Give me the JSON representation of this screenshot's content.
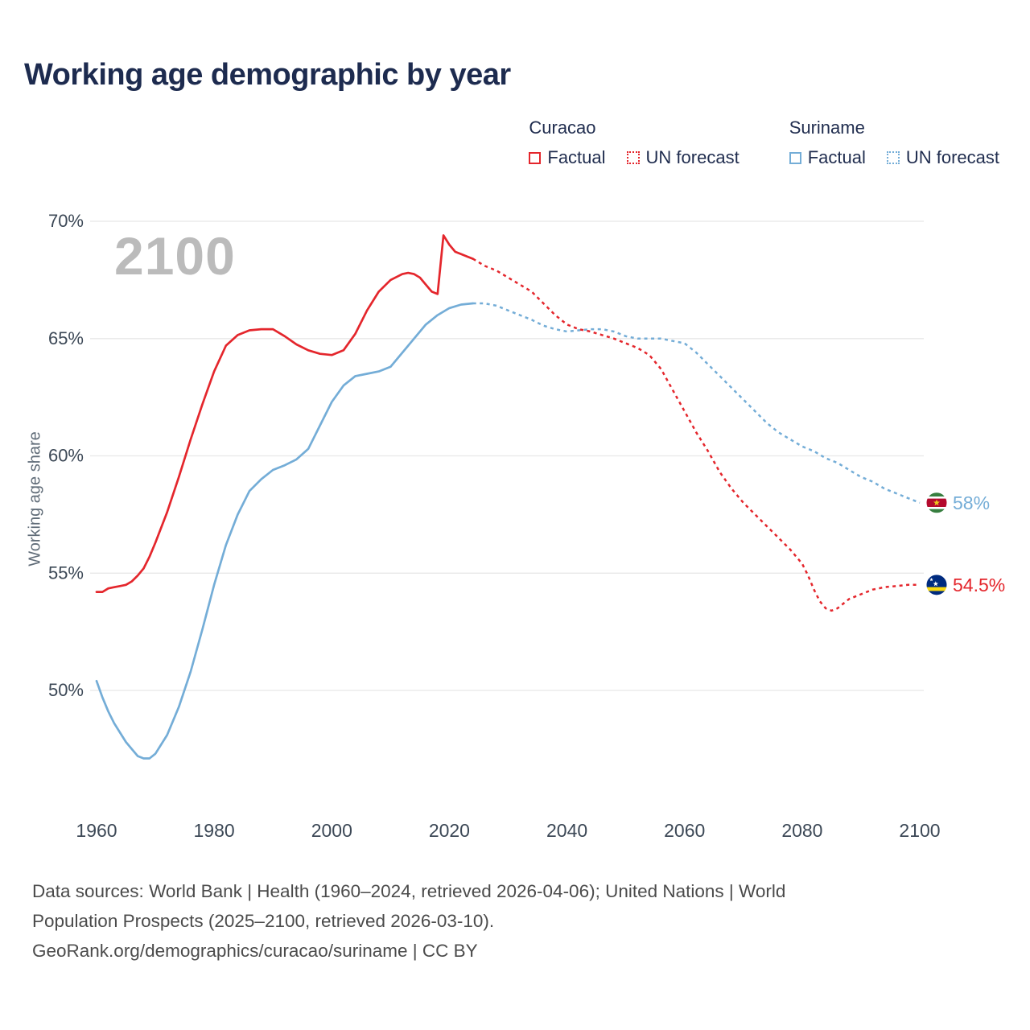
{
  "title": "Working age demographic by year",
  "legend": {
    "groups": [
      {
        "name": "Curacao",
        "items": [
          {
            "label": "Factual",
            "style": "solid"
          },
          {
            "label": "UN forecast",
            "style": "dotted"
          }
        ]
      },
      {
        "name": "Suriname",
        "items": [
          {
            "label": "Factual",
            "style": "solid"
          },
          {
            "label": "UN forecast",
            "style": "dotted"
          }
        ]
      }
    ]
  },
  "chart_data": {
    "type": "line",
    "title": "Working age demographic by year",
    "ylabel": "Working age share",
    "watermark": "2100",
    "xlim": [
      1960,
      2100
    ],
    "ylim": [
      44.5,
      71
    ],
    "yticks": [
      50,
      55,
      60,
      65,
      70
    ],
    "ytick_suffix": "%",
    "xticks": [
      1960,
      1980,
      2000,
      2020,
      2040,
      2060,
      2080,
      2100
    ],
    "grid": "horizontal",
    "legend_position": "top-right",
    "series": [
      {
        "name": "Curacao",
        "color": "#e4262c",
        "flag": "curacao-flag",
        "end_value_label": "54.5%",
        "factual": {
          "years": [
            1960,
            1961,
            1962,
            1963,
            1964,
            1965,
            1966,
            1967,
            1968,
            1969,
            1970,
            1972,
            1974,
            1976,
            1978,
            1980,
            1982,
            1984,
            1986,
            1988,
            1990,
            1992,
            1994,
            1996,
            1998,
            2000,
            2002,
            2004,
            2006,
            2008,
            2010,
            2012,
            2013,
            2014,
            2015,
            2016,
            2017,
            2018,
            2019,
            2020,
            2021,
            2022,
            2023,
            2024
          ],
          "values": [
            54.2,
            54.2,
            54.35,
            54.4,
            54.45,
            54.5,
            54.65,
            54.9,
            55.2,
            55.7,
            56.3,
            57.6,
            59.1,
            60.7,
            62.2,
            63.6,
            64.7,
            65.15,
            65.35,
            65.4,
            65.4,
            65.1,
            64.75,
            64.5,
            64.35,
            64.3,
            64.5,
            65.2,
            66.2,
            67.0,
            67.5,
            67.75,
            67.8,
            67.75,
            67.6,
            67.3,
            67.0,
            66.9,
            69.4,
            69.0,
            68.7,
            68.6,
            68.5,
            68.4
          ]
        },
        "forecast": {
          "years": [
            2024,
            2026,
            2028,
            2030,
            2032,
            2034,
            2036,
            2038,
            2040,
            2042,
            2044,
            2046,
            2048,
            2050,
            2052,
            2054,
            2056,
            2058,
            2060,
            2062,
            2064,
            2066,
            2068,
            2070,
            2072,
            2074,
            2076,
            2078,
            2080,
            2081,
            2082,
            2083,
            2084,
            2085,
            2086,
            2088,
            2090,
            2092,
            2094,
            2096,
            2098,
            2100
          ],
          "values": [
            68.4,
            68.1,
            67.9,
            67.6,
            67.3,
            67.0,
            66.5,
            66.0,
            65.6,
            65.4,
            65.3,
            65.15,
            65.0,
            64.8,
            64.6,
            64.3,
            63.7,
            62.8,
            61.9,
            61.0,
            60.2,
            59.3,
            58.6,
            58.0,
            57.5,
            57.0,
            56.5,
            56.0,
            55.4,
            54.9,
            54.3,
            53.8,
            53.5,
            53.4,
            53.5,
            53.9,
            54.1,
            54.3,
            54.4,
            54.45,
            54.5,
            54.5
          ]
        }
      },
      {
        "name": "Suriname",
        "color": "#74add7",
        "flag": "suriname-flag",
        "end_value_label": "58%",
        "factual": {
          "years": [
            1960,
            1961,
            1962,
            1963,
            1964,
            1965,
            1966,
            1967,
            1968,
            1969,
            1970,
            1972,
            1974,
            1976,
            1978,
            1980,
            1982,
            1984,
            1986,
            1988,
            1990,
            1992,
            1994,
            1996,
            1998,
            2000,
            2002,
            2004,
            2006,
            2008,
            2010,
            2012,
            2014,
            2016,
            2018,
            2020,
            2022,
            2024
          ],
          "values": [
            50.4,
            49.7,
            49.1,
            48.6,
            48.2,
            47.8,
            47.5,
            47.2,
            47.1,
            47.1,
            47.3,
            48.1,
            49.3,
            50.8,
            52.6,
            54.5,
            56.2,
            57.5,
            58.5,
            59.0,
            59.4,
            59.6,
            59.85,
            60.3,
            61.3,
            62.3,
            63.0,
            63.4,
            63.5,
            63.6,
            63.8,
            64.4,
            65.0,
            65.6,
            66.0,
            66.3,
            66.45,
            66.5
          ]
        },
        "forecast": {
          "years": [
            2024,
            2026,
            2028,
            2030,
            2032,
            2034,
            2036,
            2038,
            2040,
            2042,
            2044,
            2046,
            2048,
            2050,
            2052,
            2054,
            2056,
            2058,
            2060,
            2062,
            2064,
            2066,
            2068,
            2070,
            2072,
            2074,
            2076,
            2078,
            2080,
            2082,
            2084,
            2086,
            2088,
            2090,
            2092,
            2094,
            2096,
            2098,
            2100
          ],
          "values": [
            66.5,
            66.5,
            66.4,
            66.2,
            66.0,
            65.8,
            65.55,
            65.4,
            65.3,
            65.35,
            65.4,
            65.4,
            65.3,
            65.1,
            65.0,
            65.0,
            65.0,
            64.9,
            64.8,
            64.4,
            63.9,
            63.4,
            62.9,
            62.4,
            61.9,
            61.4,
            61.0,
            60.7,
            60.4,
            60.2,
            59.9,
            59.7,
            59.4,
            59.1,
            58.9,
            58.6,
            58.4,
            58.2,
            58.0
          ]
        }
      }
    ],
    "colors": {
      "title_text": "#1d2b4f",
      "tick_text": "#3c4856",
      "grid_line": "#e8e8e8",
      "watermark": "#bbbbbb",
      "footer_text": "#4b4b4b"
    }
  },
  "footer": {
    "lines": [
      "Data sources: World Bank | Health (1960–2024, retrieved 2026-04-06); United Nations | World",
      "Population Prospects (2025–2100, retrieved 2026-03-10).",
      "GeoRank.org/demographics/curacao/suriname | CC BY"
    ]
  }
}
